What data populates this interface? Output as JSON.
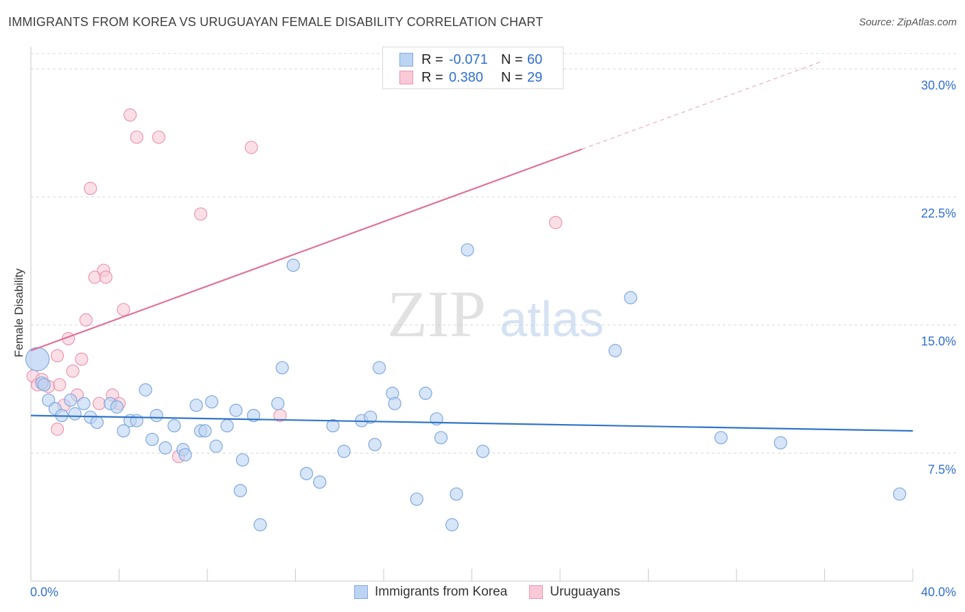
{
  "title": "IMMIGRANTS FROM KOREA VS URUGUAYAN FEMALE DISABILITY CORRELATION CHART",
  "source": "Source: ZipAtlas.com",
  "watermark": {
    "zip": "ZIP",
    "atlas": "atlas"
  },
  "legend": {
    "rows": [
      {
        "r_label": "R =",
        "r_value": "-0.071",
        "n_label": "N =",
        "n_value": "60"
      },
      {
        "r_label": "R =",
        "r_value": "0.380",
        "n_label": "N =",
        "n_value": "29"
      }
    ]
  },
  "bottom_legend": [
    "Immigrants from Korea",
    "Uruguayans"
  ],
  "colors": {
    "blue_fill": "#bcd4f3",
    "blue_stroke": "#7ea7dd",
    "blue_line": "#2f74c8",
    "pink_fill": "#f9c9d7",
    "pink_stroke": "#e996b0",
    "pink_line": "#e07099",
    "axis_text": "#2f6fcf",
    "grid": "#d8d8d8"
  },
  "chart_data": {
    "type": "scatter",
    "title": "IMMIGRANTS FROM KOREA VS URUGUAYAN FEMALE DISABILITY CORRELATION CHART",
    "xlabel": "",
    "ylabel": "Female Disability",
    "xlim": [
      0,
      40
    ],
    "ylim": [
      0,
      30.9
    ],
    "x_tick_labels": [
      "0.0%",
      "40.0%"
    ],
    "y_ticks": [
      7.5,
      15.0,
      22.5,
      30.0
    ],
    "y_tick_labels": [
      "7.5%",
      "15.0%",
      "22.5%",
      "30.0%"
    ],
    "series": [
      {
        "name": "Immigrants from Korea",
        "r": -0.071,
        "n": 60,
        "trend": {
          "x0": 0,
          "y0": 9.7,
          "x1": 40,
          "y1": 8.8
        },
        "points": [
          [
            0.3,
            13.0
          ],
          [
            0.5,
            11.6
          ],
          [
            0.8,
            10.6
          ],
          [
            1.1,
            10.1
          ],
          [
            1.4,
            9.7
          ],
          [
            1.8,
            10.6
          ],
          [
            2.0,
            9.8
          ],
          [
            2.4,
            10.4
          ],
          [
            2.7,
            9.6
          ],
          [
            3.0,
            9.3
          ],
          [
            3.6,
            10.4
          ],
          [
            3.9,
            10.2
          ],
          [
            4.2,
            8.8
          ],
          [
            4.5,
            9.4
          ],
          [
            4.8,
            9.4
          ],
          [
            5.2,
            11.2
          ],
          [
            5.5,
            8.3
          ],
          [
            5.7,
            9.7
          ],
          [
            6.1,
            7.8
          ],
          [
            6.5,
            9.1
          ],
          [
            6.9,
            7.7
          ],
          [
            7.0,
            7.4
          ],
          [
            7.5,
            10.3
          ],
          [
            7.7,
            8.8
          ],
          [
            7.9,
            8.8
          ],
          [
            8.2,
            10.5
          ],
          [
            8.4,
            7.9
          ],
          [
            8.9,
            9.1
          ],
          [
            9.3,
            10.0
          ],
          [
            9.5,
            5.3
          ],
          [
            9.6,
            7.1
          ],
          [
            10.1,
            9.7
          ],
          [
            10.4,
            3.3
          ],
          [
            11.2,
            10.4
          ],
          [
            11.4,
            12.5
          ],
          [
            11.9,
            18.5
          ],
          [
            12.5,
            6.3
          ],
          [
            13.1,
            5.8
          ],
          [
            13.7,
            9.1
          ],
          [
            14.2,
            7.6
          ],
          [
            15.0,
            9.4
          ],
          [
            15.4,
            9.6
          ],
          [
            15.6,
            8.0
          ],
          [
            15.8,
            12.5
          ],
          [
            16.4,
            11.0
          ],
          [
            16.5,
            10.4
          ],
          [
            17.5,
            4.8
          ],
          [
            17.9,
            11.0
          ],
          [
            18.4,
            9.5
          ],
          [
            18.6,
            8.4
          ],
          [
            19.1,
            3.3
          ],
          [
            19.3,
            5.1
          ],
          [
            19.8,
            19.4
          ],
          [
            20.5,
            7.6
          ],
          [
            27.2,
            16.6
          ],
          [
            26.5,
            13.5
          ],
          [
            31.3,
            8.4
          ],
          [
            34.0,
            8.1
          ],
          [
            39.4,
            5.1
          ],
          [
            0.6,
            11.5
          ]
        ]
      },
      {
        "name": "Uruguayans",
        "r": 0.38,
        "n": 29,
        "trend": {
          "x0": 0,
          "y0": 13.5,
          "x1": 25.0,
          "y1": 25.3,
          "dash_to_x": 35.8,
          "dash_to_y": 30.4
        },
        "points": [
          [
            0.1,
            12.0
          ],
          [
            0.3,
            11.5
          ],
          [
            0.5,
            11.8
          ],
          [
            0.8,
            11.4
          ],
          [
            1.2,
            8.9
          ],
          [
            1.2,
            13.2
          ],
          [
            1.3,
            11.5
          ],
          [
            1.5,
            10.3
          ],
          [
            1.7,
            14.2
          ],
          [
            1.9,
            12.3
          ],
          [
            2.1,
            10.9
          ],
          [
            2.3,
            13.0
          ],
          [
            2.5,
            15.3
          ],
          [
            2.7,
            23.0
          ],
          [
            2.9,
            17.8
          ],
          [
            3.1,
            10.4
          ],
          [
            3.3,
            18.2
          ],
          [
            3.4,
            17.8
          ],
          [
            3.7,
            10.9
          ],
          [
            4.2,
            15.9
          ],
          [
            4.5,
            27.3
          ],
          [
            4.8,
            26.0
          ],
          [
            5.8,
            26.0
          ],
          [
            7.7,
            21.5
          ],
          [
            11.3,
            9.7
          ],
          [
            10.0,
            25.4
          ],
          [
            23.8,
            21.0
          ],
          [
            6.7,
            7.3
          ],
          [
            4.0,
            10.4
          ]
        ]
      }
    ]
  }
}
